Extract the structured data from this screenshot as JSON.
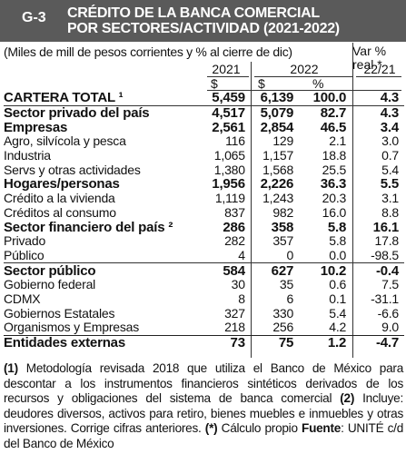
{
  "header": {
    "code": "G-3",
    "title_line1": "CRÉDITO DE LA BANCA COMERCIAL",
    "title_line2": "POR SECTORES/ACTIVIDAD (2021-2022)"
  },
  "units_note": "(Miles de mill de pesos corrientes  y % al cierre de dic)",
  "var_label_1": "Var %",
  "var_label_2": "real *",
  "years": {
    "y2021": "2021",
    "y2022": "2022",
    "var": "22/21"
  },
  "unit_row": {
    "a": "$",
    "b": "$",
    "c": "%"
  },
  "rows": [
    {
      "label": "CARTERA TOTAL ¹",
      "v2021": "5,459",
      "v2022": "6,139",
      "pct": "100.0",
      "var": "4.3",
      "bold": true
    },
    {
      "label": "Sector privado del país",
      "v2021": "4,517",
      "v2022": "5,079",
      "pct": "82.7",
      "var": "4.3",
      "bold": true
    },
    {
      "label": "Empresas",
      "v2021": "2,561",
      "v2022": "2,854",
      "pct": "46.5",
      "var": "3.4",
      "bold": true
    },
    {
      "label": "Agro, silvícola y pesca",
      "v2021": "116",
      "v2022": "129",
      "pct": "2.1",
      "var": "3.0",
      "bold": false
    },
    {
      "label": "Industria",
      "v2021": "1,065",
      "v2022": "1,157",
      "pct": "18.8",
      "var": "0.7",
      "bold": false
    },
    {
      "label": "Servs y otras actividades",
      "v2021": "1,380",
      "v2022": "1,568",
      "pct": "25.5",
      "var": "5.4",
      "bold": false
    },
    {
      "label": "Hogares/personas",
      "v2021": "1,956",
      "v2022": "2,226",
      "pct": "36.3",
      "var": "5.5",
      "bold": true
    },
    {
      "label": "Crédito a la vivienda",
      "v2021": "1,119",
      "v2022": "1,243",
      "pct": "20.3",
      "var": "3.1",
      "bold": false
    },
    {
      "label": "Créditos al consumo",
      "v2021": "837",
      "v2022": "982",
      "pct": "16.0",
      "var": "8.8",
      "bold": false
    },
    {
      "label": "Sector financiero del país ²",
      "v2021": "286",
      "v2022": "358",
      "pct": "5.8",
      "var": "16.1",
      "bold": true
    },
    {
      "label": "Privado",
      "v2021": "282",
      "v2022": "357",
      "pct": "5.8",
      "var": "17.8",
      "bold": false
    },
    {
      "label": "Público",
      "v2021": "4",
      "v2022": "0",
      "pct": "0.0",
      "var": "-98.5",
      "bold": false
    },
    {
      "label": "Sector público",
      "v2021": "584",
      "v2022": "627",
      "pct": "10.2",
      "var": "-0.4",
      "bold": true
    },
    {
      "label": "Gobierno federal",
      "v2021": "30",
      "v2022": "35",
      "pct": "0.6",
      "var": "7.5",
      "bold": false
    },
    {
      "label": "CDMX",
      "v2021": "8",
      "v2022": "6",
      "pct": "0.1",
      "var": "-31.1",
      "bold": false
    },
    {
      "label": "Gobiernos Estatales",
      "v2021": "327",
      "v2022": "330",
      "pct": "5.4",
      "var": "-6.6",
      "bold": false
    },
    {
      "label": "Organismos y Empresas",
      "v2021": "218",
      "v2022": "256",
      "pct": "4.2",
      "var": "9.0",
      "bold": false
    },
    {
      "label": "Entidades externas",
      "v2021": "73",
      "v2022": "75",
      "pct": "1.2",
      "var": "-4.7",
      "bold": true
    }
  ],
  "notes": {
    "n1_mark": "(1)",
    "n1_text": " Metodología revisada 2018 que utiliza el Banco de México para descontar a los instrumentos financieros sintéticos derivados de los recursos y obligaciones del sistema de banca comercial ",
    "n2_mark": "(2)",
    "n2_text": " Incluye: deudores diversos, activos para retiro, bienes muebles e inmuebles y otras inversiones. Corrige cifras anteriores. ",
    "n3_mark": "(*)",
    "n3_text": " Cálculo propio ",
    "source_label": "Fuente",
    "source_text": ": UNITÉ c/d del Banco de México"
  }
}
